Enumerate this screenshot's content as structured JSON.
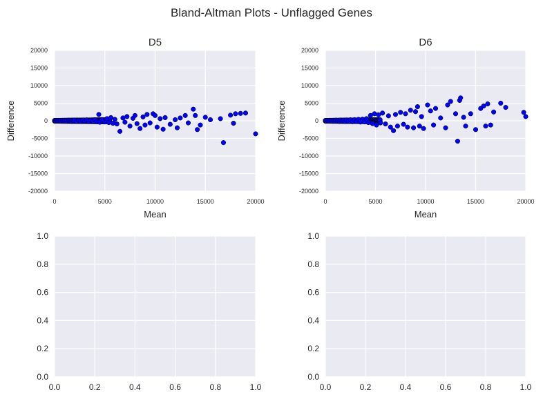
{
  "figure": {
    "title": "Bland-Altman Plots - Unflagged Genes"
  },
  "colors": {
    "axes_bg": "#EAEAF2",
    "grid": "#FFFFFF",
    "marker": "#0000FF",
    "marker_edge": "#000000",
    "text": "#262626"
  },
  "chart_data": [
    {
      "type": "scatter",
      "title": "D5",
      "xlabel": "Mean",
      "ylabel": "Difference",
      "xlim": [
        0,
        20000
      ],
      "ylim": [
        -20000,
        20000
      ],
      "xticks": [
        "0",
        "5000",
        "10000",
        "15000",
        "20000"
      ],
      "yticks": [
        "20000",
        "15000",
        "10000",
        "5000",
        "0",
        "-5000",
        "-10000",
        "-15000",
        "-20000"
      ],
      "grid": true,
      "points": [
        [
          50,
          20
        ],
        [
          120,
          -60
        ],
        [
          200,
          40
        ],
        [
          300,
          -80
        ],
        [
          400,
          90
        ],
        [
          500,
          -30
        ],
        [
          600,
          60
        ],
        [
          700,
          -120
        ],
        [
          800,
          100
        ],
        [
          900,
          -50
        ],
        [
          1000,
          130
        ],
        [
          1100,
          -90
        ],
        [
          1200,
          70
        ],
        [
          1300,
          -140
        ],
        [
          1400,
          150
        ],
        [
          1500,
          -40
        ],
        [
          1600,
          110
        ],
        [
          1700,
          -160
        ],
        [
          1800,
          80
        ],
        [
          1900,
          -70
        ],
        [
          2000,
          180
        ],
        [
          2200,
          -200
        ],
        [
          2400,
          120
        ],
        [
          2600,
          -150
        ],
        [
          2800,
          210
        ],
        [
          3000,
          -100
        ],
        [
          3200,
          250
        ],
        [
          3400,
          -230
        ],
        [
          3600,
          160
        ],
        [
          3800,
          -180
        ],
        [
          4000,
          300
        ],
        [
          4200,
          -260
        ],
        [
          4400,
          1800
        ],
        [
          4500,
          -400
        ],
        [
          4700,
          350
        ],
        [
          5000,
          -320
        ],
        [
          5200,
          600
        ],
        [
          5400,
          -500
        ],
        [
          5600,
          900
        ],
        [
          5800,
          -700
        ],
        [
          6000,
          400
        ],
        [
          6200,
          -900
        ],
        [
          6500,
          -3000
        ],
        [
          6800,
          800
        ],
        [
          7000,
          -400
        ],
        [
          7200,
          1200
        ],
        [
          7500,
          -1500
        ],
        [
          7800,
          700
        ],
        [
          8000,
          1500
        ],
        [
          8200,
          -800
        ],
        [
          8500,
          -2200
        ],
        [
          8800,
          1100
        ],
        [
          9000,
          -1200
        ],
        [
          9200,
          1800
        ],
        [
          9500,
          -600
        ],
        [
          9800,
          2000
        ],
        [
          10000,
          1500
        ],
        [
          10200,
          -1800
        ],
        [
          10500,
          600
        ],
        [
          10800,
          -2400
        ],
        [
          11000,
          900
        ],
        [
          11500,
          -1000
        ],
        [
          12000,
          300
        ],
        [
          12200,
          -2000
        ],
        [
          12500,
          800
        ],
        [
          13000,
          1500
        ],
        [
          13300,
          -600
        ],
        [
          13800,
          3300
        ],
        [
          14000,
          1500
        ],
        [
          14200,
          -2500
        ],
        [
          14500,
          -1200
        ],
        [
          15000,
          1000
        ],
        [
          15500,
          300
        ],
        [
          16500,
          600
        ],
        [
          16800,
          -6200
        ],
        [
          17500,
          1600
        ],
        [
          17800,
          -700
        ],
        [
          18000,
          2000
        ],
        [
          18500,
          2100
        ],
        [
          19000,
          2200
        ],
        [
          20000,
          -3700
        ]
      ]
    },
    {
      "type": "scatter",
      "title": "D6",
      "xlabel": "Mean",
      "ylabel": "Difference",
      "xlim": [
        0,
        20000
      ],
      "ylim": [
        -20000,
        20000
      ],
      "xticks": [
        "0",
        "5000",
        "10000",
        "15000",
        "20000"
      ],
      "yticks": [
        "20000",
        "15000",
        "10000",
        "5000",
        "0",
        "-5000",
        "-10000",
        "-15000",
        "-20000"
      ],
      "grid": true,
      "points": [
        [
          50,
          30
        ],
        [
          150,
          -70
        ],
        [
          250,
          60
        ],
        [
          350,
          -100
        ],
        [
          450,
          110
        ],
        [
          550,
          -50
        ],
        [
          650,
          90
        ],
        [
          750,
          -140
        ],
        [
          850,
          120
        ],
        [
          950,
          -80
        ],
        [
          1050,
          160
        ],
        [
          1200,
          -120
        ],
        [
          1300,
          100
        ],
        [
          1400,
          -170
        ],
        [
          1500,
          190
        ],
        [
          1650,
          -60
        ],
        [
          1800,
          140
        ],
        [
          1950,
          -200
        ],
        [
          2100,
          230
        ],
        [
          2300,
          -150
        ],
        [
          2500,
          280
        ],
        [
          2700,
          -260
        ],
        [
          2900,
          320
        ],
        [
          3100,
          -200
        ],
        [
          3300,
          400
        ],
        [
          3500,
          -350
        ],
        [
          3700,
          450
        ],
        [
          3900,
          -300
        ],
        [
          4100,
          600
        ],
        [
          4300,
          -500
        ],
        [
          4500,
          1500
        ],
        [
          4700,
          -800
        ],
        [
          4900,
          2000
        ],
        [
          5100,
          -1200
        ],
        [
          5300,
          1700
        ],
        [
          5500,
          -600
        ],
        [
          5700,
          2200
        ],
        [
          6000,
          -900
        ],
        [
          6300,
          1400
        ],
        [
          6500,
          -1800
        ],
        [
          6800,
          -2800
        ],
        [
          7000,
          1800
        ],
        [
          7200,
          -1500
        ],
        [
          7500,
          2400
        ],
        [
          7800,
          -1000
        ],
        [
          8000,
          2000
        ],
        [
          8200,
          -1800
        ],
        [
          8500,
          3000
        ],
        [
          8800,
          -2000
        ],
        [
          9000,
          2600
        ],
        [
          9200,
          4000
        ],
        [
          9400,
          -1500
        ],
        [
          9600,
          1200
        ],
        [
          9800,
          -2200
        ],
        [
          10200,
          4500
        ],
        [
          10500,
          2800
        ],
        [
          10800,
          -1200
        ],
        [
          11000,
          3500
        ],
        [
          11500,
          800
        ],
        [
          12000,
          -2000
        ],
        [
          12200,
          4500
        ],
        [
          12500,
          5500
        ],
        [
          13000,
          2000
        ],
        [
          13200,
          -5800
        ],
        [
          13400,
          5800
        ],
        [
          13500,
          6500
        ],
        [
          13800,
          1000
        ],
        [
          14000,
          -1500
        ],
        [
          14500,
          2000
        ],
        [
          15000,
          -2500
        ],
        [
          15500,
          3500
        ],
        [
          15800,
          4200
        ],
        [
          16000,
          -1500
        ],
        [
          16200,
          4800
        ],
        [
          16500,
          -1200
        ],
        [
          16800,
          2500
        ],
        [
          17500,
          5000
        ],
        [
          18000,
          3800
        ],
        [
          19800,
          2400
        ],
        [
          20000,
          1200
        ]
      ]
    },
    {
      "type": "scatter",
      "xlim": [
        0,
        1
      ],
      "ylim": [
        0,
        1
      ],
      "xticks": [
        "0.0",
        "0.2",
        "0.4",
        "0.6",
        "0.8",
        "1.0"
      ],
      "yticks": [
        "1.0",
        "0.8",
        "0.6",
        "0.4",
        "0.2",
        "0.0"
      ],
      "grid": true,
      "points": []
    },
    {
      "type": "scatter",
      "xlim": [
        0,
        1
      ],
      "ylim": [
        0,
        1
      ],
      "xticks": [
        "0.0",
        "0.2",
        "0.4",
        "0.6",
        "0.8",
        "1.0"
      ],
      "yticks": [
        "1.0",
        "0.8",
        "0.6",
        "0.4",
        "0.2",
        "0.0"
      ],
      "grid": true,
      "points": []
    }
  ]
}
